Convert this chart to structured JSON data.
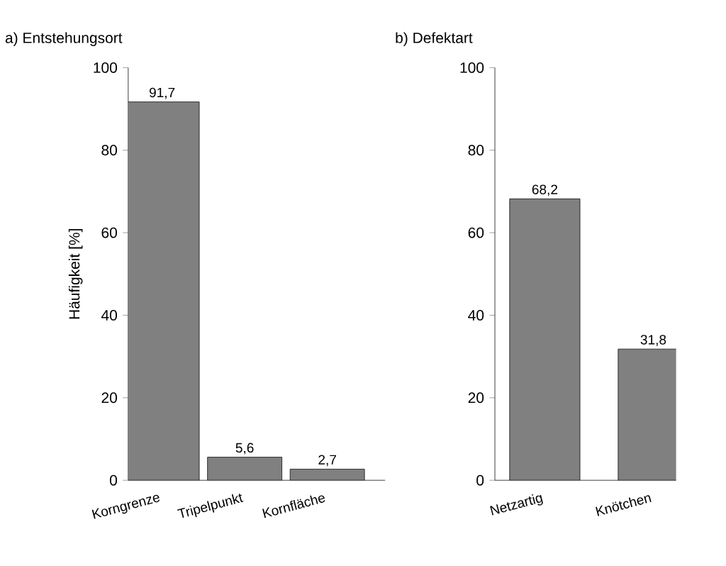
{
  "chart_data": [
    {
      "type": "bar",
      "title": "a) Entstehungsort",
      "ylabel": "Häufigkeit [%]",
      "categories": [
        "Korngrenze",
        "Tripelpunkt",
        "Kornfläche"
      ],
      "values": [
        91.7,
        5.6,
        2.7
      ],
      "value_labels": [
        "91,7",
        "5,6",
        "2,7"
      ],
      "color": "#808080",
      "ylim": [
        0,
        100
      ],
      "yticks": [
        0,
        20,
        40,
        60,
        80,
        100
      ],
      "grid": false
    },
    {
      "type": "bar",
      "title": "b) Defektart",
      "categories": [
        "Netzartig",
        "Knötchen"
      ],
      "values": [
        68.2,
        31.8
      ],
      "value_labels": [
        "68,2",
        "31,8"
      ],
      "color": "#808080",
      "ylim": [
        0,
        100
      ],
      "yticks": [
        0,
        20,
        40,
        60,
        80,
        100
      ],
      "grid": false
    }
  ]
}
